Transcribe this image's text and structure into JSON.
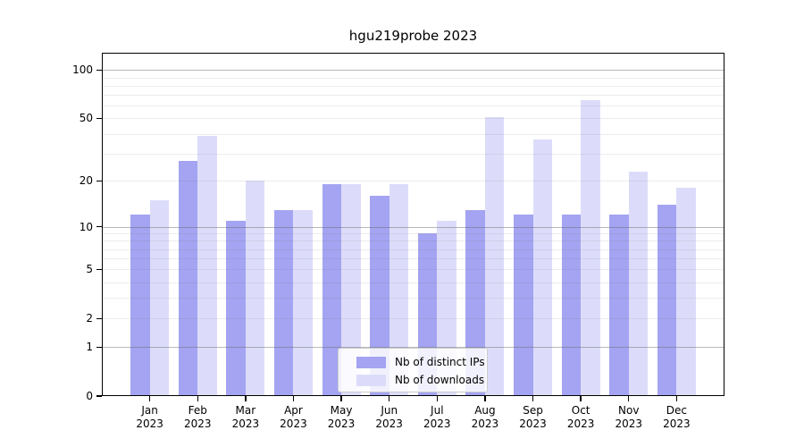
{
  "title": "hgu219probe 2023",
  "legend": {
    "items": [
      {
        "label": "Nb of distinct IPs",
        "color": "#a4a4f2"
      },
      {
        "label": "Nb of downloads",
        "color": "#dcdcfa"
      }
    ]
  },
  "colors": {
    "ips_bar": "#a4a4f2",
    "downloads_bar": "#dcdcfa",
    "axis": "#000000",
    "background": "#ffffff"
  },
  "chart_data": {
    "type": "bar",
    "title": "hgu219probe 2023",
    "categories": [
      "Jan",
      "Feb",
      "Mar",
      "Apr",
      "May",
      "Jun",
      "Jul",
      "Aug",
      "Sep",
      "Oct",
      "Nov",
      "Dec"
    ],
    "category_year": "2023",
    "series": [
      {
        "name": "Nb of distinct IPs",
        "color": "#a4a4f2",
        "values": [
          12,
          27,
          11,
          13,
          19,
          16,
          9,
          13,
          12,
          12,
          12,
          14
        ]
      },
      {
        "name": "Nb of downloads",
        "color": "#dcdcfa",
        "values": [
          15,
          39,
          20,
          13,
          19,
          19,
          11,
          51,
          37,
          65,
          23,
          18
        ]
      }
    ],
    "xlabel": "",
    "ylabel": "",
    "y_scale": "log1p",
    "y_ticks": [
      0,
      1,
      2,
      5,
      10,
      20,
      50,
      100
    ],
    "major_gridlines": [
      1,
      10,
      100
    ],
    "minor_gridlines": [
      2,
      3,
      4,
      5,
      6,
      7,
      8,
      9,
      20,
      30,
      40,
      50,
      60,
      70,
      80,
      90
    ],
    "ylim": [
      0,
      127
    ],
    "grid": true,
    "grid_above_bars": true,
    "legend_position": "inside-bottom-center"
  }
}
